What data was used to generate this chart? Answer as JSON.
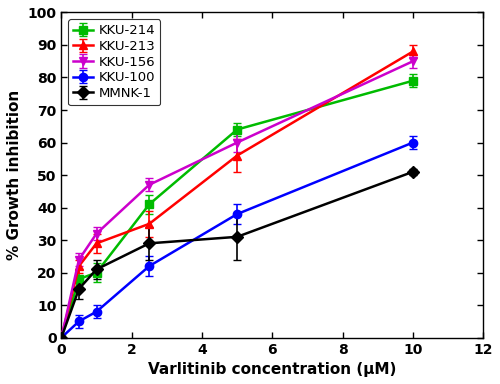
{
  "title": "",
  "xlabel": "Varlitinib concentration (μM)",
  "ylabel": "% Growth inhibition",
  "xlim": [
    0,
    12
  ],
  "ylim": [
    0,
    100
  ],
  "xticks": [
    0,
    2,
    4,
    6,
    8,
    10,
    12
  ],
  "yticks": [
    0,
    10,
    20,
    30,
    40,
    50,
    60,
    70,
    80,
    90,
    100
  ],
  "series": [
    {
      "label": "KKU-214",
      "color": "#00bb00",
      "marker": "s",
      "x": [
        0,
        0.5,
        1.0,
        2.5,
        5.0,
        10.0
      ],
      "y": [
        0,
        18,
        20,
        41,
        64,
        79
      ],
      "yerr": [
        0,
        3,
        3,
        3,
        2,
        2
      ]
    },
    {
      "label": "KKU-213",
      "color": "#ff0000",
      "marker": "^",
      "x": [
        0,
        0.5,
        1.0,
        2.5,
        5.0,
        10.0
      ],
      "y": [
        0,
        22,
        29,
        35,
        56,
        88
      ],
      "yerr": [
        0,
        2,
        3,
        4,
        5,
        2
      ]
    },
    {
      "label": "KKU-156",
      "color": "#cc00cc",
      "marker": "v",
      "x": [
        0,
        0.5,
        1.0,
        2.5,
        5.0,
        10.0
      ],
      "y": [
        0,
        24,
        32,
        47,
        60,
        85
      ],
      "yerr": [
        0,
        2,
        2,
        2,
        3,
        2
      ]
    },
    {
      "label": "KKU-100",
      "color": "#0000ff",
      "marker": "o",
      "x": [
        0,
        0.5,
        1.0,
        2.5,
        5.0,
        10.0
      ],
      "y": [
        0,
        5,
        8,
        22,
        38,
        60
      ],
      "yerr": [
        0,
        2,
        2,
        3,
        3,
        2
      ]
    },
    {
      "label": "MMNK-1",
      "color": "#000000",
      "marker": "D",
      "x": [
        0,
        0.5,
        1.0,
        2.5,
        5.0,
        10.0
      ],
      "y": [
        0,
        15,
        21,
        29,
        31,
        51
      ],
      "yerr": [
        0,
        3,
        3,
        5,
        7,
        1
      ]
    }
  ],
  "legend_loc": "upper left",
  "legend_fontsize": 9.5,
  "axis_fontsize": 11,
  "tick_fontsize": 10,
  "linewidth": 1.8,
  "markersize": 6,
  "capsize": 3,
  "elinewidth": 1.2,
  "figsize": [
    5.0,
    3.84
  ],
  "dpi": 100
}
